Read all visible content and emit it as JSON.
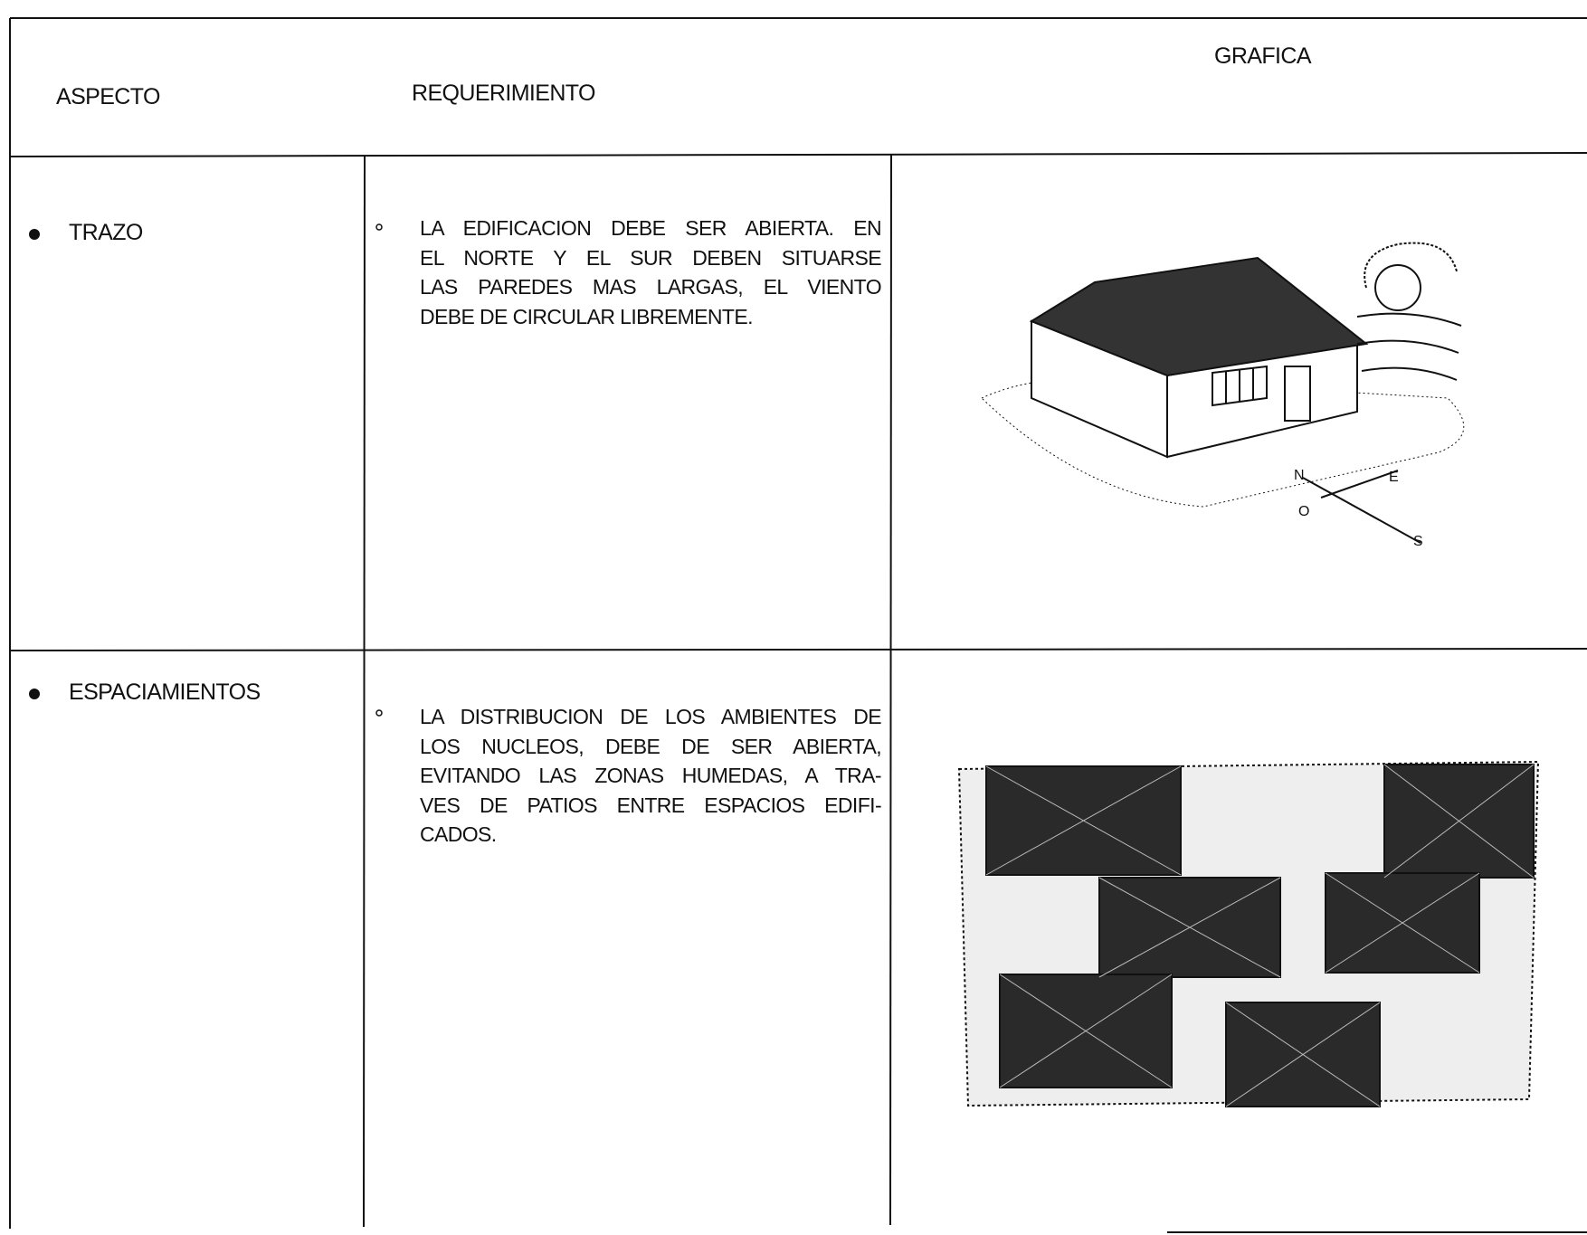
{
  "header": {
    "columns": [
      "ASPECTO",
      "REQUERIMIENTO",
      "GRAFICA"
    ]
  },
  "rows": [
    {
      "aspect": "TRAZO",
      "requirement": [
        "LA EDIFICACION DEBE SER ABIERTA. EN",
        "EL NORTE Y EL SUR DEBEN SITUARSE",
        "LAS PAREDES MAS LARGAS, EL VIENTO",
        "DEBE DE CIRCULAR LIBREMENTE."
      ]
    },
    {
      "aspect": "ESPACIAMIENTOS",
      "requirement": [
        "LA DISTRIBUCION DE LOS AMBIENTES DE",
        "LOS NUCLEOS, DEBE DE SER ABIERTA,",
        "EVITANDO LAS ZONAS HUMEDAS, A TRA-",
        "VES DE PATIOS ENTRE ESPACIOS EDIFI-",
        "CADOS."
      ]
    }
  ]
}
